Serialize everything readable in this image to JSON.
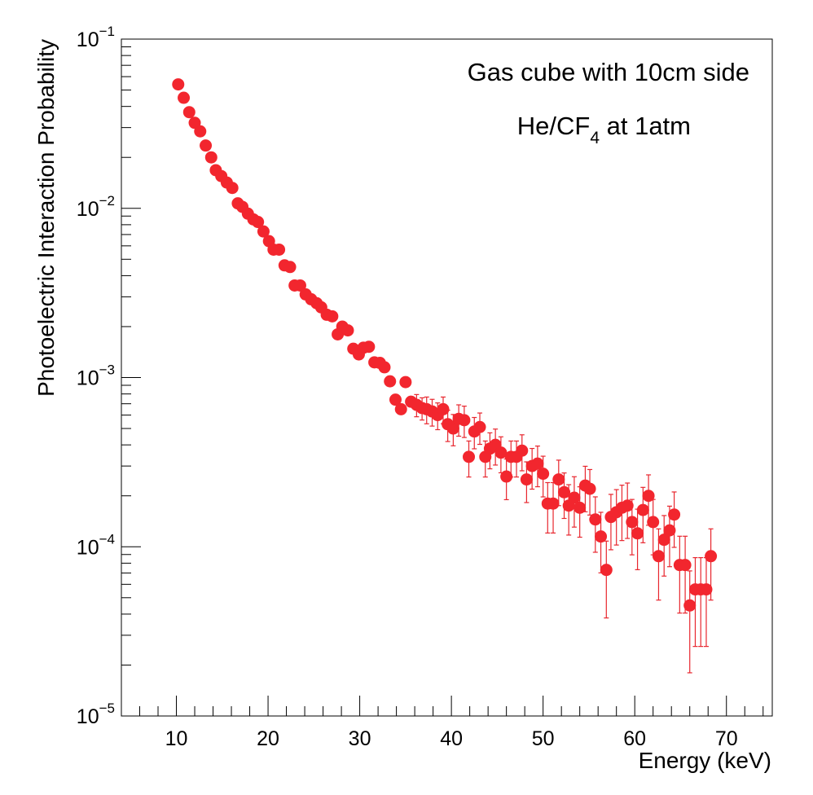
{
  "chart_data": {
    "type": "scatter",
    "title": "",
    "xlabel": "Energy (keV)",
    "ylabel": "Photoelectric Interaction Probability",
    "xlim": [
      4,
      75
    ],
    "ylim": [
      1e-05,
      0.1
    ],
    "yscale": "log",
    "grid": false,
    "legend": "none",
    "color": "#f2262e",
    "x_ticks": [
      "10",
      "20",
      "30",
      "40",
      "50",
      "60",
      "70"
    ],
    "y_ticks": [
      {
        "base": "10",
        "exp": "−1",
        "value": 0.1
      },
      {
        "base": "10",
        "exp": "−2",
        "value": 0.01
      },
      {
        "base": "10",
        "exp": "−3",
        "value": 0.001
      },
      {
        "base": "10",
        "exp": "−4",
        "value": 0.0001
      },
      {
        "base": "10",
        "exp": "−5",
        "value": 1e-05
      }
    ],
    "annotations": {
      "line1": "Gas cube with 10cm side",
      "line2_main": "He/CF",
      "line2_sub": "4",
      "line2_tail": " at 1atm"
    },
    "series": [
      {
        "name": "He/CF4 at 1atm",
        "points": [
          [
            10.2,
            0.054,
            0
          ],
          [
            10.8,
            0.045,
            0
          ],
          [
            11.4,
            0.037,
            0
          ],
          [
            12.0,
            0.032,
            0
          ],
          [
            12.6,
            0.0285,
            0
          ],
          [
            13.2,
            0.0235,
            0
          ],
          [
            13.8,
            0.02,
            0
          ],
          [
            14.3,
            0.0168,
            0
          ],
          [
            14.9,
            0.0155,
            0
          ],
          [
            15.5,
            0.0142,
            0
          ],
          [
            16.1,
            0.0132,
            0
          ],
          [
            16.7,
            0.0107,
            0
          ],
          [
            17.2,
            0.0102,
            0
          ],
          [
            17.8,
            0.0093,
            0
          ],
          [
            18.4,
            0.0086,
            0
          ],
          [
            18.9,
            0.0083,
            0
          ],
          [
            19.5,
            0.0073,
            0
          ],
          [
            20.1,
            0.0064,
            0
          ],
          [
            20.6,
            0.0057,
            0
          ],
          [
            21.2,
            0.0057,
            0
          ],
          [
            21.8,
            0.0046,
            0
          ],
          [
            22.4,
            0.0045,
            0
          ],
          [
            22.9,
            0.0035,
            0
          ],
          [
            23.5,
            0.0035,
            0
          ],
          [
            24.1,
            0.0031,
            0
          ],
          [
            24.7,
            0.0029,
            0
          ],
          [
            25.3,
            0.00275,
            0
          ],
          [
            25.8,
            0.0026,
            0
          ],
          [
            26.4,
            0.00235,
            0
          ],
          [
            27.0,
            0.0023,
            0
          ],
          [
            27.6,
            0.0018,
            0
          ],
          [
            28.1,
            0.002,
            0
          ],
          [
            28.7,
            0.0019,
            0
          ],
          [
            29.3,
            0.00148,
            0
          ],
          [
            29.9,
            0.00137,
            0
          ],
          [
            30.4,
            0.0015,
            0
          ],
          [
            31.0,
            0.00152,
            0
          ],
          [
            31.6,
            0.00123,
            0
          ],
          [
            32.2,
            0.00122,
            0
          ],
          [
            32.7,
            0.00115,
            0
          ],
          [
            33.3,
            0.00095,
            0
          ],
          [
            33.9,
            0.00074,
            0
          ],
          [
            34.5,
            0.00065,
            0
          ],
          [
            35.0,
            0.00094,
            0
          ],
          [
            35.6,
            0.00072,
            0
          ],
          [
            36.2,
            0.00069,
            0.05
          ],
          [
            36.8,
            0.00066,
            0.05
          ],
          [
            37.3,
            0.00065,
            0.06
          ],
          [
            37.9,
            0.00063,
            0.06
          ],
          [
            38.5,
            0.0006,
            0.06
          ],
          [
            39.1,
            0.00065,
            0.06
          ],
          [
            39.6,
            0.00053,
            0.07
          ],
          [
            40.2,
            0.0005,
            0.07
          ],
          [
            40.8,
            0.00057,
            0.07
          ],
          [
            41.4,
            0.00056,
            0.07
          ],
          [
            41.9,
            0.00034,
            0.08
          ],
          [
            42.5,
            0.00048,
            0.07
          ],
          [
            43.1,
            0.00051,
            0.07
          ],
          [
            43.7,
            0.00034,
            0.08
          ],
          [
            44.2,
            0.00038,
            0.08
          ],
          [
            44.8,
            0.0004,
            0.08
          ],
          [
            45.4,
            0.00036,
            0.08
          ],
          [
            46.0,
            0.00026,
            0.09
          ],
          [
            46.5,
            0.00034,
            0.08
          ],
          [
            47.1,
            0.00034,
            0.08
          ],
          [
            47.7,
            0.00037,
            0.08
          ],
          [
            48.2,
            0.00025,
            0.09
          ],
          [
            48.8,
            0.0003,
            0.09
          ],
          [
            49.4,
            0.00031,
            0.09
          ],
          [
            50.0,
            0.00027,
            0.09
          ],
          [
            50.5,
            0.00018,
            0.11
          ],
          [
            51.1,
            0.00018,
            0.11
          ],
          [
            51.7,
            0.00025,
            0.1
          ],
          [
            52.3,
            0.00021,
            0.1
          ],
          [
            52.8,
            0.000175,
            0.11
          ],
          [
            53.4,
            0.000195,
            0.11
          ],
          [
            54.0,
            0.00017,
            0.11
          ],
          [
            54.6,
            0.00023,
            0.1
          ],
          [
            55.1,
            0.00022,
            0.1
          ],
          [
            55.7,
            0.000145,
            0.12
          ],
          [
            56.3,
            0.000115,
            0.13
          ],
          [
            56.9,
            7.3e-05,
            0.16
          ],
          [
            57.4,
            0.00015,
            0.12
          ],
          [
            58.0,
            0.00016,
            0.12
          ],
          [
            58.6,
            0.00017,
            0.12
          ],
          [
            59.2,
            0.000175,
            0.12
          ],
          [
            59.7,
            0.00014,
            0.12
          ],
          [
            60.3,
            0.00012,
            0.13
          ],
          [
            60.9,
            0.000165,
            0.12
          ],
          [
            61.5,
            0.0002,
            0.11
          ],
          [
            62.0,
            0.00014,
            0.12
          ],
          [
            62.6,
            8.8e-05,
            0.15
          ],
          [
            63.2,
            0.00011,
            0.13
          ],
          [
            63.8,
            0.000125,
            0.13
          ],
          [
            64.3,
            0.000155,
            0.12
          ],
          [
            64.9,
            7.8e-05,
            0.16
          ],
          [
            65.5,
            7.8e-05,
            0.16
          ],
          [
            66.0,
            4.5e-05,
            0.2
          ],
          [
            66.6,
            5.6e-05,
            0.18
          ],
          [
            67.2,
            5.6e-05,
            0.18
          ],
          [
            67.8,
            5.6e-05,
            0.18
          ],
          [
            68.3,
            8.8e-05,
            0.15
          ]
        ]
      }
    ]
  }
}
